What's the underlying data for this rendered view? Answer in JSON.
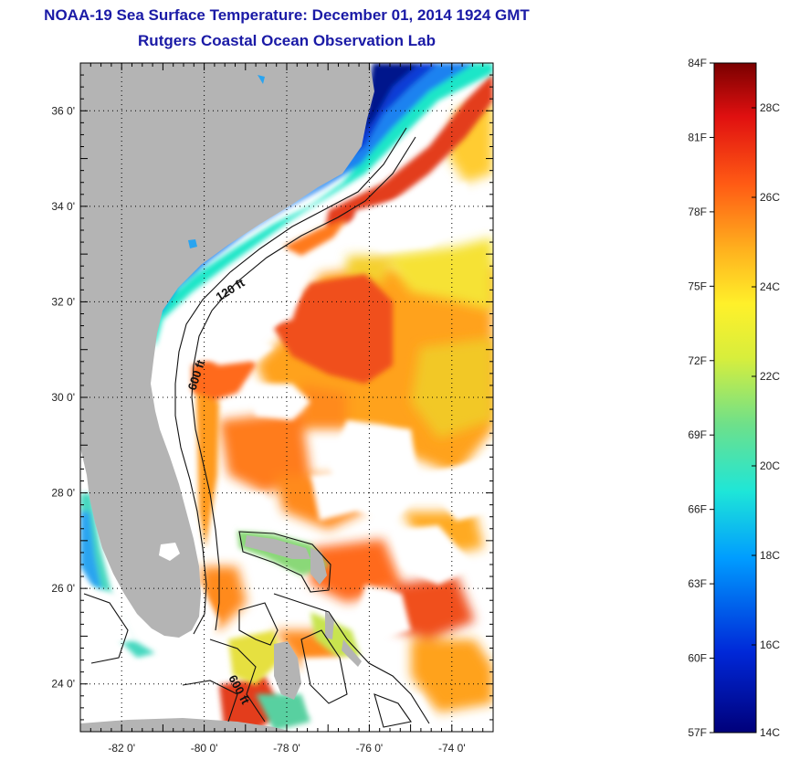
{
  "title": {
    "line1": "NOAA-19 Sea Surface Temperature:  December 01, 2014 1924 GMT",
    "line2": "Rutgers Coastal Ocean Observation Lab"
  },
  "map": {
    "lon_range": [
      -83,
      -73
    ],
    "lat_range": [
      23,
      37
    ],
    "lat_ticks": [
      {
        "value": 36,
        "label": "36 0'"
      },
      {
        "value": 34,
        "label": "34 0'"
      },
      {
        "value": 32,
        "label": "32 0'"
      },
      {
        "value": 30,
        "label": "30 0'"
      },
      {
        "value": 28,
        "label": "28 0'"
      },
      {
        "value": 26,
        "label": "26 0'"
      },
      {
        "value": 24,
        "label": "24 0'"
      }
    ],
    "lon_ticks": [
      {
        "value": -82,
        "label": "-82 0'"
      },
      {
        "value": -80,
        "label": "-80 0'"
      },
      {
        "value": -78,
        "label": "-78 0'"
      },
      {
        "value": -76,
        "label": "-76 0'"
      },
      {
        "value": -74,
        "label": "-74 0'"
      }
    ],
    "contour_labels": {
      "shelf_120": "120 ft",
      "shelf_600_north": "600 ft",
      "shelf_600_south": "600 ft"
    },
    "colors": {
      "land": "#b4b4b4",
      "cloud": "#ffffff",
      "gulf_stream": "#f0501e",
      "warm": "#ff8a1e",
      "mild": "#f6e234",
      "cool": "#5be0a0",
      "cold": "#0a46d2",
      "coldest": "#06128c"
    }
  },
  "colorbar": {
    "fahrenheit": [
      "84F",
      "81F",
      "78F",
      "75F",
      "72F",
      "69F",
      "66F",
      "63F",
      "60F",
      "57F"
    ],
    "celsius": [
      "28C",
      "26C",
      "24C",
      "22C",
      "20C",
      "18C",
      "16C",
      "14C"
    ]
  }
}
